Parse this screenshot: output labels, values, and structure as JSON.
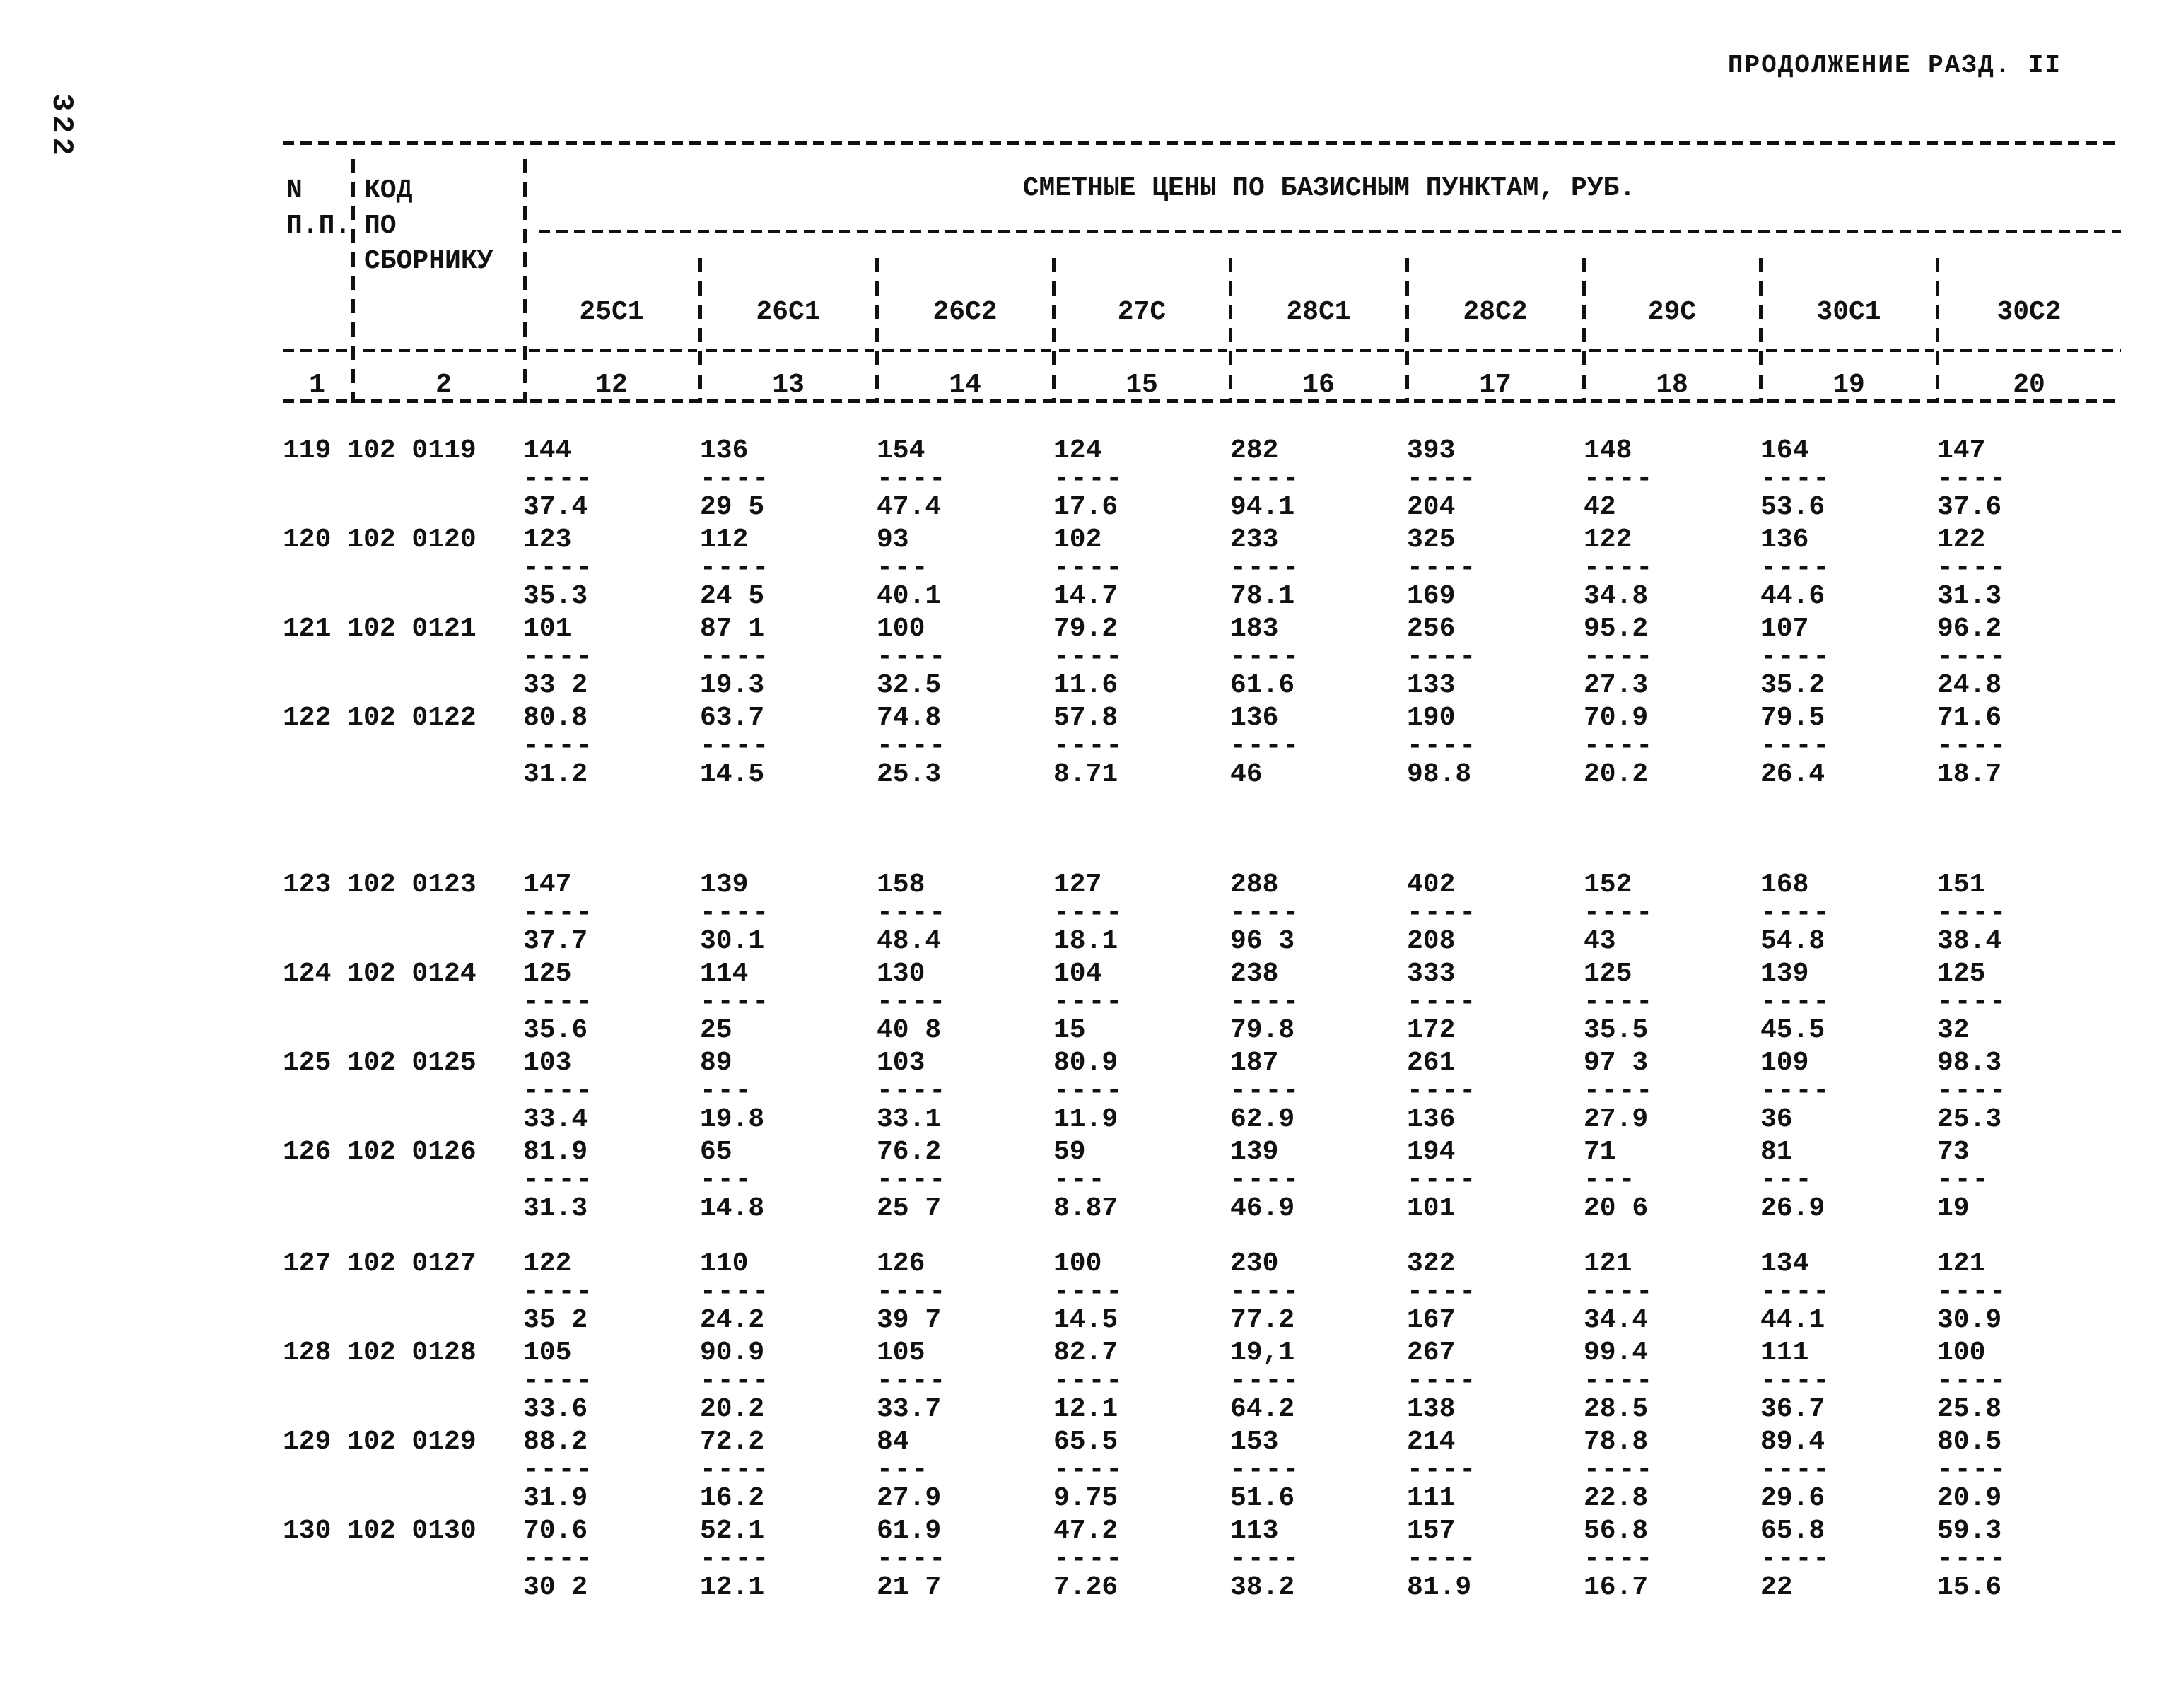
{
  "page": {
    "number": "322",
    "continuation": "ПРОДОЛЖЕНИЕ РАЗД. II"
  },
  "header": {
    "col_n_line1": "N",
    "col_n_line2": "П.П.",
    "col_code_line1": "КОД",
    "col_code_line2": "ПО",
    "col_code_line3": "СБОРНИКУ",
    "span_title": "СМЕТНЫЕ ЦЕНЫ ПО БАЗИСНЫМ ПУНКТАМ, РУБ.",
    "columns": [
      "25С1",
      "26С1",
      "26С2",
      "27С",
      "28С1",
      "28С2",
      "29С",
      "30С1",
      "30С2"
    ],
    "index": [
      "1",
      "2",
      "12",
      "13",
      "14",
      "15",
      "16",
      "17",
      "18",
      "19",
      "20"
    ]
  },
  "rows": [
    {
      "n": "119",
      "code": "102 0119",
      "gap": "none",
      "cells": [
        [
          "144",
          "37.4"
        ],
        [
          "136",
          "29 5"
        ],
        [
          "154",
          "47.4"
        ],
        [
          "124",
          "17.6"
        ],
        [
          "282",
          "94.1"
        ],
        [
          "393",
          "204"
        ],
        [
          "148",
          "42"
        ],
        [
          "164",
          "53.6"
        ],
        [
          "147",
          "37.6"
        ]
      ]
    },
    {
      "n": "120",
      "code": "102 0120",
      "gap": "none",
      "cells": [
        [
          "123",
          "35.3"
        ],
        [
          "112",
          "24 5"
        ],
        [
          "93",
          "40.1"
        ],
        [
          "102",
          "14.7"
        ],
        [
          "233",
          "78.1"
        ],
        [
          "325",
          "169"
        ],
        [
          "122",
          "34.8"
        ],
        [
          "136",
          "44.6"
        ],
        [
          "122",
          "31.3"
        ]
      ]
    },
    {
      "n": "121",
      "code": "102 0121",
      "gap": "none",
      "cells": [
        [
          "101",
          "33 2"
        ],
        [
          "87 1",
          "19.3"
        ],
        [
          "100",
          "32.5"
        ],
        [
          "79.2",
          "11.6"
        ],
        [
          "183",
          "61.6"
        ],
        [
          "256",
          "133"
        ],
        [
          "95.2",
          "27.3"
        ],
        [
          "107",
          "35.2"
        ],
        [
          "96.2",
          "24.8"
        ]
      ]
    },
    {
      "n": "122",
      "code": "102 0122",
      "gap": "large",
      "cells": [
        [
          "80.8",
          "31.2"
        ],
        [
          "63.7",
          "14.5"
        ],
        [
          "74.8",
          "25.3"
        ],
        [
          "57.8",
          "8.71"
        ],
        [
          "136",
          "46"
        ],
        [
          "190",
          "98.8"
        ],
        [
          "70.9",
          "20.2"
        ],
        [
          "79.5",
          "26.4"
        ],
        [
          "71.6",
          "18.7"
        ]
      ]
    },
    {
      "n": "123",
      "code": "102 0123",
      "gap": "none",
      "cells": [
        [
          "147",
          "37.7"
        ],
        [
          "139",
          "30.1"
        ],
        [
          "158",
          "48.4"
        ],
        [
          "127",
          "18.1"
        ],
        [
          "288",
          "96 3"
        ],
        [
          "402",
          "208"
        ],
        [
          "152",
          "43"
        ],
        [
          "168",
          "54.8"
        ],
        [
          "151",
          "38.4"
        ]
      ]
    },
    {
      "n": "124",
      "code": "102 0124",
      "gap": "none",
      "cells": [
        [
          "125",
          "35.6"
        ],
        [
          "114",
          "25"
        ],
        [
          "130",
          "40 8"
        ],
        [
          "104",
          "15"
        ],
        [
          "238",
          "79.8"
        ],
        [
          "333",
          "172"
        ],
        [
          "125",
          "35.5"
        ],
        [
          "139",
          "45.5"
        ],
        [
          "125",
          "32"
        ]
      ]
    },
    {
      "n": "125",
      "code": "102 0125",
      "gap": "none",
      "cells": [
        [
          "103",
          "33.4"
        ],
        [
          "89",
          "19.8"
        ],
        [
          "103",
          "33.1"
        ],
        [
          "80.9",
          "11.9"
        ],
        [
          "187",
          "62.9"
        ],
        [
          "261",
          "136"
        ],
        [
          "97 3",
          "27.9"
        ],
        [
          "109",
          "36"
        ],
        [
          "98.3",
          "25.3"
        ]
      ]
    },
    {
      "n": "126",
      "code": "102 0126",
      "gap": "medium",
      "cells": [
        [
          "81.9",
          "31.3"
        ],
        [
          "65",
          "14.8"
        ],
        [
          "76.2",
          "25 7"
        ],
        [
          "59",
          "8.87"
        ],
        [
          "139",
          "46.9"
        ],
        [
          "194",
          "101"
        ],
        [
          "71",
          "20 6"
        ],
        [
          "81",
          "26.9"
        ],
        [
          "73",
          "19"
        ]
      ]
    },
    {
      "n": "127",
      "code": "102 0127",
      "gap": "none",
      "cells": [
        [
          "122",
          "35 2"
        ],
        [
          "110",
          "24.2"
        ],
        [
          "126",
          "39 7"
        ],
        [
          "100",
          "14.5"
        ],
        [
          "230",
          "77.2"
        ],
        [
          "322",
          "167"
        ],
        [
          "121",
          "34.4"
        ],
        [
          "134",
          "44.1"
        ],
        [
          "121",
          "30.9"
        ]
      ]
    },
    {
      "n": "128",
      "code": "102 0128",
      "gap": "none",
      "cells": [
        [
          "105",
          "33.6"
        ],
        [
          "90.9",
          "20.2"
        ],
        [
          "105",
          "33.7"
        ],
        [
          "82.7",
          "12.1"
        ],
        [
          "19,1",
          "64.2"
        ],
        [
          "267",
          "138"
        ],
        [
          "99.4",
          "28.5"
        ],
        [
          "111",
          "36.7"
        ],
        [
          "100",
          "25.8"
        ]
      ]
    },
    {
      "n": "129",
      "code": "102 0129",
      "gap": "none",
      "cells": [
        [
          "88.2",
          "31.9"
        ],
        [
          "72.2",
          "16.2"
        ],
        [
          "84",
          "27.9"
        ],
        [
          "65.5",
          "9.75"
        ],
        [
          "153",
          "51.6"
        ],
        [
          "214",
          "111"
        ],
        [
          "78.8",
          "22.8"
        ],
        [
          "89.4",
          "29.6"
        ],
        [
          "80.5",
          "20.9"
        ]
      ]
    },
    {
      "n": "130",
      "code": "102 0130",
      "gap": "none",
      "cells": [
        [
          "70.6",
          "30 2"
        ],
        [
          "52.1",
          "12.1"
        ],
        [
          "61.9",
          "21 7"
        ],
        [
          "47.2",
          "7.26"
        ],
        [
          "113",
          "38.2"
        ],
        [
          "157",
          "81.9"
        ],
        [
          "56.8",
          "16.7"
        ],
        [
          "65.8",
          "22"
        ],
        [
          "59.3",
          "15.6"
        ]
      ]
    }
  ]
}
